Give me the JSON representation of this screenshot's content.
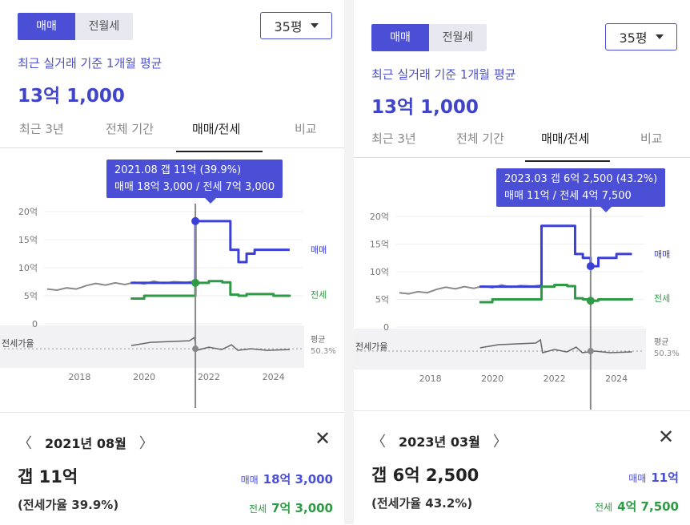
{
  "colors": {
    "accent": "#4a4fd6",
    "sale": "#3b40d8",
    "rent": "#2f9a46",
    "ratio": "#666666",
    "history": "#8a8a8a"
  },
  "panels": [
    {
      "segments": [
        "매매",
        "전월세"
      ],
      "size": "35평",
      "subtitle": "최근 실거래 기준 1개월 평균",
      "price": "13억 1,000",
      "tabs": [
        "최근 3년",
        "전체 기간",
        "매매/전세",
        "비교"
      ],
      "tooltip": {
        "line1": "2021.08  갭 11억 (39.9%)",
        "line2": "매매 18억 3,000 / 전세 7억 3,000"
      },
      "chart": {
        "y_ticks": [
          "20억",
          "15억",
          "10억",
          "5억",
          "0"
        ],
        "x_ticks": [
          "2018",
          "2020",
          "2022",
          "2024"
        ],
        "sale_label": "매매",
        "rent_label": "전세",
        "ratio_label": "전세가율",
        "avg_label": "평균",
        "avg_value": "50.3%"
      },
      "detail": {
        "month": "2021년 08월",
        "gap": "갭 11억",
        "ratio": "(전세가율 39.9%)",
        "sale_key": "매매",
        "sale_val": "18억 3,000",
        "rent_key": "전세",
        "rent_val": "7억 3,000"
      }
    },
    {
      "segments": [
        "매매",
        "전월세"
      ],
      "size": "35평",
      "subtitle": "최근 실거래 기준 1개월 평균",
      "price": "13억 1,000",
      "tabs": [
        "최근 3년",
        "전체 기간",
        "매매/전세",
        "비교"
      ],
      "tooltip": {
        "line1": "2023.03  갭 6억 2,500 (43.2%)",
        "line2": "매매 11억 / 전세 4억 7,500"
      },
      "chart": {
        "y_ticks": [
          "20억",
          "15억",
          "10억",
          "5억",
          "0"
        ],
        "x_ticks": [
          "2018",
          "2020",
          "2022",
          "2024"
        ],
        "sale_label": "매매",
        "rent_label": "전세",
        "ratio_label": "전세가율",
        "avg_label": "평균",
        "avg_value": "50.3%"
      },
      "detail": {
        "month": "2023년 03월",
        "gap": "갭 6억 2,500",
        "ratio": "(전세가율 43.2%)",
        "sale_key": "매매",
        "sale_val": "11억",
        "rent_key": "전세",
        "rent_val": "4억 7,500"
      }
    }
  ],
  "chart_data": [
    {
      "type": "line",
      "x": [
        "2017.01",
        "2018.01",
        "2019.01",
        "2019.06",
        "2019.08",
        "2020.01",
        "2021.01",
        "2021.07",
        "2021.08",
        "2022.01",
        "2022.06",
        "2022.09",
        "2022.12",
        "2023.03",
        "2023.06",
        "2024.01",
        "2024.07"
      ],
      "ylim": [
        0,
        20
      ],
      "series": [
        {
          "name": "매매",
          "values": [
            null,
            null,
            null,
            null,
            7.3,
            7.3,
            7.3,
            7.3,
            18.3,
            18.3,
            18.3,
            13.2,
            11,
            12.5,
            13.2,
            13.2,
            13.2
          ]
        },
        {
          "name": "전세",
          "values": [
            null,
            null,
            null,
            null,
            4.5,
            5,
            5,
            5,
            7.3,
            7.6,
            7.4,
            5.2,
            5,
            5.3,
            5.3,
            5,
            5.2
          ]
        }
      ],
      "selected": "2021.08"
    },
    {
      "type": "line",
      "x": [
        "2017.01",
        "2018.01",
        "2019.01",
        "2019.06",
        "2019.08",
        "2020.01",
        "2021.01",
        "2021.07",
        "2021.08",
        "2022.01",
        "2022.06",
        "2022.09",
        "2022.12",
        "2023.03",
        "2023.06",
        "2024.01",
        "2024.07"
      ],
      "ylim": [
        0,
        20
      ],
      "series": [
        {
          "name": "매매",
          "values": [
            null,
            null,
            null,
            null,
            7.3,
            7.3,
            7.3,
            7.3,
            18.3,
            18.3,
            18.3,
            13.2,
            12.5,
            11,
            12.5,
            13.2,
            13.2
          ]
        },
        {
          "name": "전세",
          "values": [
            null,
            null,
            null,
            null,
            4.5,
            5,
            5,
            5,
            7.3,
            7.6,
            7.4,
            5.2,
            5,
            4.75,
            5,
            5,
            5.2
          ]
        }
      ],
      "selected": "2023.03"
    }
  ]
}
